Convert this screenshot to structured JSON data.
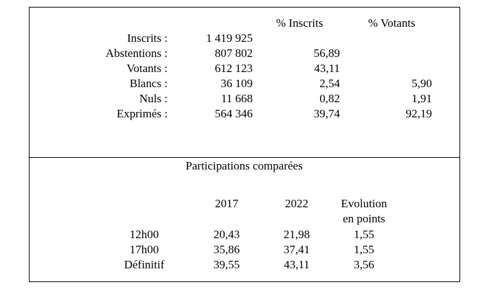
{
  "results": {
    "headers": {
      "inscrits_pct": "% Inscrits",
      "votants_pct": "% Votants"
    },
    "rows": [
      {
        "label": "Inscrits :",
        "count": "1 419 925",
        "pct_inscrits": "",
        "pct_votants": ""
      },
      {
        "label": "Abstentions :",
        "count": "807 802",
        "pct_inscrits": "56,89",
        "pct_votants": ""
      },
      {
        "label": "Votants :",
        "count": "612 123",
        "pct_inscrits": "43,11",
        "pct_votants": ""
      },
      {
        "label": "Blancs :",
        "count": "36 109",
        "pct_inscrits": "2,54",
        "pct_votants": "5,90"
      },
      {
        "label": "Nuls :",
        "count": "11 668",
        "pct_inscrits": "0,82",
        "pct_votants": "1,91"
      },
      {
        "label": "Exprimés :",
        "count": "564 346",
        "pct_inscrits": "39,74",
        "pct_votants": "92,19"
      }
    ]
  },
  "participation": {
    "title": "Participations comparées",
    "headers": {
      "y2017": "2017",
      "y2022": "2022",
      "evolution_line1": "Evolution",
      "evolution_line2": "en points"
    },
    "rows": [
      {
        "label": "12h00",
        "y2017": "20,43",
        "y2022": "21,98",
        "evolution": "1,55"
      },
      {
        "label": "17h00",
        "y2017": "35,86",
        "y2022": "37,41",
        "evolution": "1,55"
      },
      {
        "label": "Définitif",
        "y2017": "39,55",
        "y2022": "43,11",
        "evolution": "3,56"
      }
    ]
  }
}
